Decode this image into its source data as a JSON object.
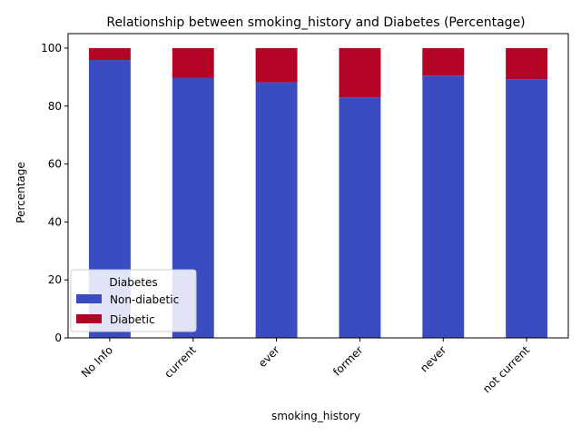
{
  "chart_data": {
    "type": "bar",
    "stacked": true,
    "title": "Relationship between smoking_history and Diabetes (Percentage)",
    "xlabel": "smoking_history",
    "ylabel": "Percentage",
    "categories": [
      "No Info",
      "current",
      "ever",
      "former",
      "never",
      "not current"
    ],
    "series": [
      {
        "name": "Non-diabetic",
        "color": "#3b4cc0",
        "values": [
          95.9,
          89.8,
          88.2,
          83.0,
          90.5,
          89.3
        ]
      },
      {
        "name": "Diabetic",
        "color": "#b40426",
        "values": [
          4.1,
          10.2,
          11.8,
          17.0,
          9.5,
          10.7
        ]
      }
    ],
    "ylim": [
      0,
      105
    ],
    "yticks": [
      0,
      20,
      40,
      60,
      80,
      100
    ],
    "legend": {
      "title": "Diabetes",
      "position": "lower-left"
    },
    "grid": false
  }
}
